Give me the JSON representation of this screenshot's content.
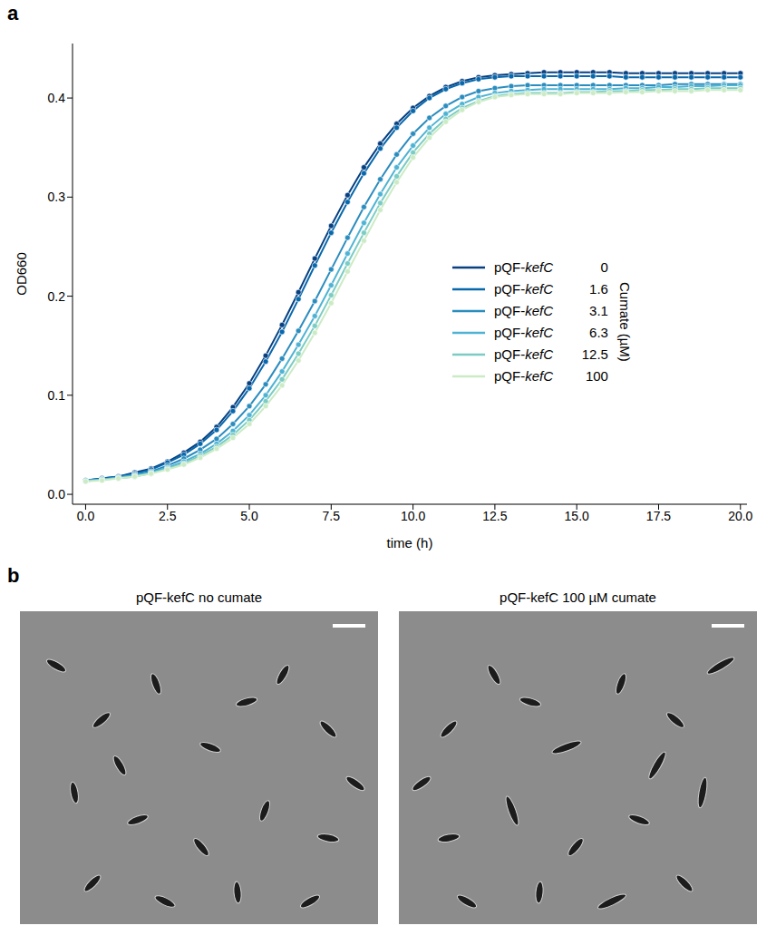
{
  "chart_data": {
    "type": "line",
    "panel_label": "a",
    "x_label": "time (h)",
    "y_label": "OD660",
    "legend_title": "Cumate (µM)",
    "legend": "lower right",
    "xlim": [
      -0.4,
      20.2
    ],
    "xticks": [
      {
        "value": 0,
        "label": "0.0"
      },
      {
        "value": 2.5,
        "label": "2.5"
      },
      {
        "value": 5,
        "label": "5.0"
      },
      {
        "value": 7.5,
        "label": "7.5"
      },
      {
        "value": 10,
        "label": "10.0"
      },
      {
        "value": 12.5,
        "label": "12.5"
      },
      {
        "value": 15,
        "label": "15.0"
      },
      {
        "value": 17.5,
        "label": "17.5"
      },
      {
        "value": 20,
        "label": "20.0"
      }
    ],
    "ylim": [
      -0.01,
      0.455
    ],
    "yticks": [
      {
        "value": 0,
        "label": "0.0"
      },
      {
        "value": 0.1,
        "label": "0.1"
      },
      {
        "value": 0.2,
        "label": "0.2"
      },
      {
        "value": 0.3,
        "label": "0.3"
      },
      {
        "value": 0.4,
        "label": "0.4"
      }
    ],
    "grid": false,
    "marker": "o",
    "line_style": "solid",
    "x": [
      0,
      0.5,
      1,
      1.5,
      2,
      2.5,
      3,
      3.5,
      4,
      4.5,
      5,
      5.5,
      6,
      6.5,
      7,
      7.5,
      8,
      8.5,
      9,
      9.5,
      10,
      10.5,
      11,
      11.5,
      12,
      12.5,
      13,
      13.5,
      14,
      14.5,
      15,
      15.5,
      16,
      16.5,
      17,
      17.5,
      18,
      18.5,
      19,
      19.5,
      20
    ],
    "series": [
      {
        "name": "pQF-kefC",
        "cumate": 0,
        "color": "#084081",
        "values": [
          0.014,
          0.016,
          0.018,
          0.022,
          0.026,
          0.033,
          0.042,
          0.053,
          0.068,
          0.088,
          0.112,
          0.14,
          0.171,
          0.204,
          0.238,
          0.271,
          0.302,
          0.33,
          0.354,
          0.374,
          0.39,
          0.402,
          0.411,
          0.417,
          0.421,
          0.423,
          0.424,
          0.425,
          0.426,
          0.426,
          0.426,
          0.426,
          0.426,
          0.425,
          0.425,
          0.425,
          0.425,
          0.425,
          0.425,
          0.425,
          0.425
        ]
      },
      {
        "name": "pQF-kefC",
        "cumate": 1.6,
        "color": "#0868ac",
        "values": [
          0.014,
          0.016,
          0.018,
          0.021,
          0.025,
          0.032,
          0.04,
          0.051,
          0.065,
          0.084,
          0.107,
          0.134,
          0.164,
          0.197,
          0.231,
          0.264,
          0.295,
          0.324,
          0.349,
          0.37,
          0.387,
          0.4,
          0.409,
          0.415,
          0.419,
          0.421,
          0.422,
          0.422,
          0.422,
          0.422,
          0.422,
          0.422,
          0.422,
          0.421,
          0.421,
          0.421,
          0.421,
          0.421,
          0.421,
          0.421,
          0.421
        ]
      },
      {
        "name": "pQF-kefC",
        "cumate": 3.1,
        "color": "#2b8cbe",
        "values": [
          0.014,
          0.015,
          0.017,
          0.02,
          0.023,
          0.029,
          0.036,
          0.045,
          0.056,
          0.071,
          0.089,
          0.111,
          0.137,
          0.165,
          0.195,
          0.227,
          0.259,
          0.29,
          0.318,
          0.343,
          0.364,
          0.38,
          0.392,
          0.401,
          0.407,
          0.41,
          0.412,
          0.413,
          0.413,
          0.413,
          0.413,
          0.413,
          0.413,
          0.413,
          0.413,
          0.413,
          0.414,
          0.414,
          0.414,
          0.414,
          0.414
        ]
      },
      {
        "name": "pQF-kefC",
        "cumate": 6.3,
        "color": "#4eb3d3",
        "values": [
          0.014,
          0.015,
          0.017,
          0.019,
          0.022,
          0.027,
          0.033,
          0.041,
          0.051,
          0.064,
          0.08,
          0.1,
          0.124,
          0.151,
          0.18,
          0.211,
          0.243,
          0.274,
          0.303,
          0.33,
          0.352,
          0.37,
          0.384,
          0.394,
          0.401,
          0.405,
          0.407,
          0.408,
          0.409,
          0.409,
          0.409,
          0.409,
          0.409,
          0.41,
          0.41,
          0.411,
          0.411,
          0.412,
          0.412,
          0.413,
          0.413
        ]
      },
      {
        "name": "pQF-kefC",
        "cumate": 12.5,
        "color": "#7bccc4",
        "values": [
          0.013,
          0.015,
          0.016,
          0.018,
          0.021,
          0.026,
          0.031,
          0.039,
          0.048,
          0.06,
          0.075,
          0.094,
          0.116,
          0.142,
          0.17,
          0.201,
          0.233,
          0.264,
          0.294,
          0.321,
          0.345,
          0.364,
          0.379,
          0.39,
          0.397,
          0.402,
          0.404,
          0.405,
          0.405,
          0.405,
          0.406,
          0.406,
          0.407,
          0.407,
          0.408,
          0.408,
          0.409,
          0.409,
          0.41,
          0.41,
          0.41
        ]
      },
      {
        "name": "pQF-kefC",
        "cumate": 100,
        "color": "#ccebc5",
        "values": [
          0.013,
          0.014,
          0.016,
          0.018,
          0.021,
          0.025,
          0.03,
          0.037,
          0.046,
          0.057,
          0.071,
          0.089,
          0.11,
          0.135,
          0.163,
          0.193,
          0.225,
          0.256,
          0.287,
          0.315,
          0.34,
          0.36,
          0.376,
          0.388,
          0.396,
          0.401,
          0.403,
          0.404,
          0.404,
          0.404,
          0.405,
          0.405,
          0.405,
          0.406,
          0.406,
          0.407,
          0.407,
          0.407,
          0.408,
          0.408,
          0.408
        ]
      }
    ]
  },
  "image_panel": {
    "panel_label": "b",
    "titles": [
      "pQF-kefC no cumate",
      "pQF-kefC 100 µM cumate"
    ]
  }
}
